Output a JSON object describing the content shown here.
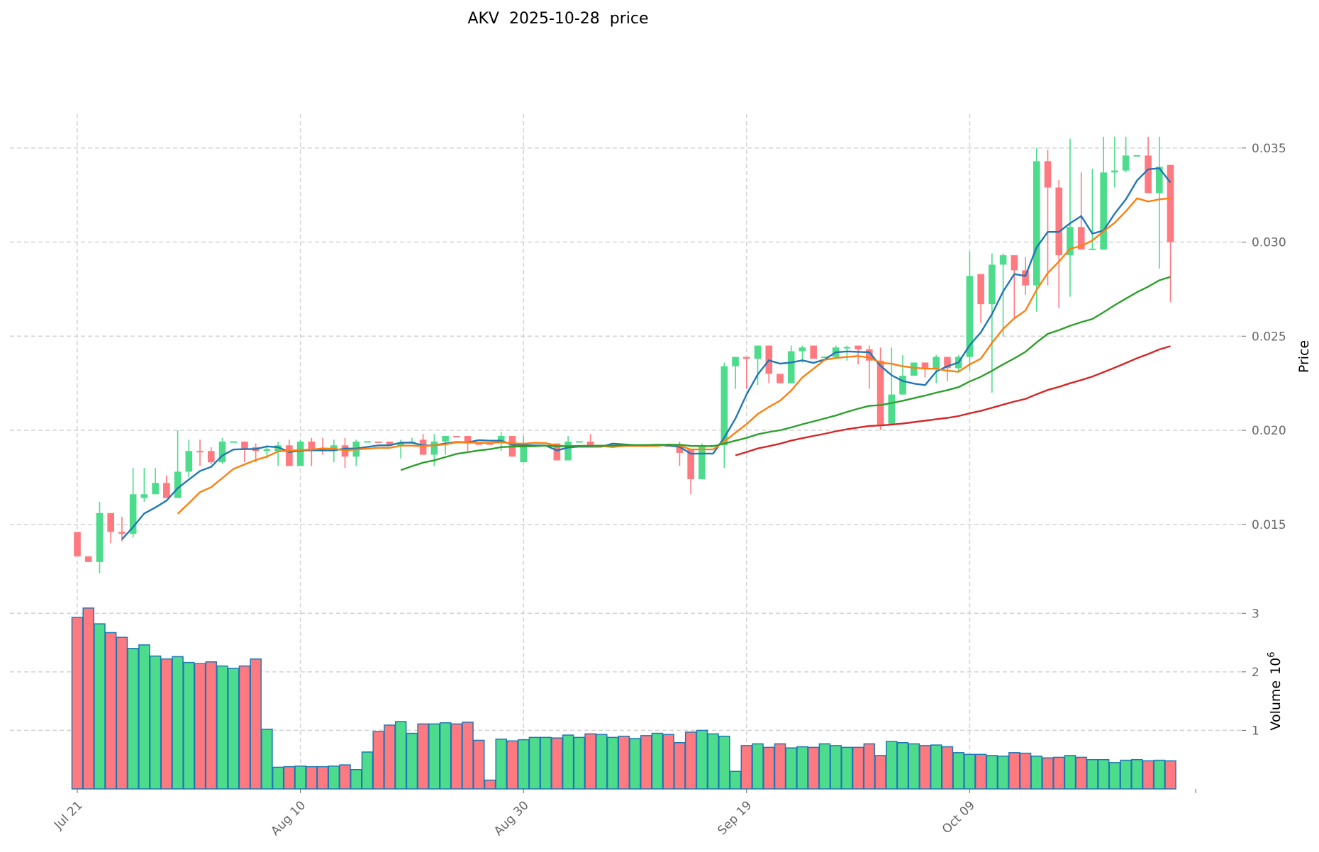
{
  "chart_data": {
    "type": "candlestick",
    "title": "AKV  2025-10-28  price",
    "ylabel": "Price",
    "volume_label": "Volume",
    "volume_exponent_base": "10",
    "volume_exponent": "6",
    "ylim": [
      0.0113,
      0.0368
    ],
    "volume_ylim": [
      0,
      3.33
    ],
    "price_ticks": [
      "0.015",
      "0.020",
      "0.025",
      "0.030",
      "0.035"
    ],
    "volume_ticks": [
      "1",
      "2",
      "3"
    ],
    "x_ticks": [
      {
        "index": 0,
        "label": "Jul 21"
      },
      {
        "index": 20,
        "label": "Aug 10"
      },
      {
        "index": 40,
        "label": "Aug 30"
      },
      {
        "index": 60,
        "label": "Sep 19"
      },
      {
        "index": 80,
        "label": "Oct 09"
      }
    ],
    "grid": true,
    "colors": {
      "up": "#4cdc8b",
      "down": "#ff7a80",
      "volume_edge": "#1f77b4"
    },
    "moving_averages": [
      {
        "window": 5,
        "color": "#1f77b4"
      },
      {
        "window": 10,
        "color": "#ff7f0e"
      },
      {
        "window": 30,
        "color": "#2ca02c"
      },
      {
        "window": 60,
        "color": "#d62728"
      }
    ],
    "ohlc_fields": [
      "open",
      "high",
      "low",
      "close"
    ],
    "ohlc": [
      [
        0.0146,
        0.0146,
        0.0133,
        0.0133
      ],
      [
        0.0133,
        0.0133,
        0.013,
        0.013
      ],
      [
        0.013,
        0.0162,
        0.0124,
        0.0156
      ],
      [
        0.0156,
        0.0156,
        0.014,
        0.0146
      ],
      [
        0.0146,
        0.0154,
        0.0141,
        0.0145
      ],
      [
        0.0145,
        0.018,
        0.0143,
        0.0166
      ],
      [
        0.0164,
        0.018,
        0.0162,
        0.0166
      ],
      [
        0.0166,
        0.018,
        0.0166,
        0.0172
      ],
      [
        0.0172,
        0.0176,
        0.0164,
        0.0164
      ],
      [
        0.0164,
        0.02,
        0.0164,
        0.0178
      ],
      [
        0.0178,
        0.0195,
        0.0175,
        0.0189
      ],
      [
        0.0189,
        0.0195,
        0.0181,
        0.01888
      ],
      [
        0.0189,
        0.0191,
        0.0182,
        0.0183
      ],
      [
        0.0183,
        0.0196,
        0.0182,
        0.0194
      ],
      [
        0.0194,
        0.0194,
        0.0194,
        0.01941
      ],
      [
        0.0194,
        0.0194,
        0.0183,
        0.019
      ],
      [
        0.0191,
        0.0193,
        0.0183,
        0.0189
      ],
      [
        0.0189,
        0.0192,
        0.0185,
        0.019
      ],
      [
        0.0189,
        0.0194,
        0.0181,
        0.0192
      ],
      [
        0.0192,
        0.0195,
        0.0181,
        0.0181
      ],
      [
        0.0181,
        0.0195,
        0.0181,
        0.0194
      ],
      [
        0.0194,
        0.0196,
        0.0181,
        0.019
      ],
      [
        0.019,
        0.0196,
        0.0187,
        0.01895
      ],
      [
        0.019,
        0.0195,
        0.0183,
        0.0192
      ],
      [
        0.0192,
        0.0196,
        0.018,
        0.0186
      ],
      [
        0.0186,
        0.0195,
        0.0181,
        0.0194
      ],
      [
        0.0194,
        0.0194,
        0.0194,
        0.01942
      ],
      [
        0.0194,
        0.0194,
        0.0194,
        0.01938
      ],
      [
        0.0194,
        0.0194,
        0.0192,
        0.0192
      ],
      [
        0.0192,
        0.0195,
        0.0185,
        0.0193
      ],
      [
        0.0193,
        0.0196,
        0.0193,
        0.0194
      ],
      [
        0.0195,
        0.0198,
        0.0187,
        0.0187
      ],
      [
        0.0187,
        0.0198,
        0.0181,
        0.0194
      ],
      [
        0.0194,
        0.0197,
        0.0187,
        0.0197
      ],
      [
        0.0197,
        0.0197,
        0.0197,
        0.01968
      ],
      [
        0.0197,
        0.0197,
        0.0189,
        0.0193
      ],
      [
        0.0193,
        0.0193,
        0.0193,
        0.01928
      ],
      [
        0.0193,
        0.0193,
        0.0193,
        0.01928
      ],
      [
        0.0193,
        0.0199,
        0.0189,
        0.0197
      ],
      [
        0.0197,
        0.0197,
        0.0186,
        0.0186
      ],
      [
        0.0183,
        0.0197,
        0.0183,
        0.0192
      ],
      [
        0.0192,
        0.0192,
        0.0192,
        0.01921
      ],
      [
        0.0192,
        0.0192,
        0.0192,
        0.01922
      ],
      [
        0.0193,
        0.0193,
        0.0184,
        0.0184
      ],
      [
        0.0184,
        0.0197,
        0.0184,
        0.0194
      ],
      [
        0.0194,
        0.0194,
        0.0194,
        0.01942
      ],
      [
        0.0194,
        0.0198,
        0.0191,
        0.0192
      ],
      [
        0.0192,
        0.0192,
        0.0192,
        0.01922
      ],
      [
        0.0192,
        0.0192,
        0.0192,
        0.01922
      ],
      [
        0.0192,
        0.0192,
        0.0192,
        0.01918
      ],
      [
        0.0192,
        0.0192,
        0.0192,
        0.01922
      ],
      [
        0.0192,
        0.0192,
        0.0192,
        0.01918
      ],
      [
        0.0192,
        0.0192,
        0.0192,
        0.01922
      ],
      [
        0.0192,
        0.0192,
        0.0192,
        0.01918
      ],
      [
        0.0192,
        0.0194,
        0.0181,
        0.0188
      ],
      [
        0.019,
        0.019,
        0.0166,
        0.0174
      ],
      [
        0.0174,
        0.0193,
        0.0174,
        0.0192
      ],
      [
        0.0192,
        0.0192,
        0.0192,
        0.01922
      ],
      [
        0.0192,
        0.0236,
        0.018,
        0.0234
      ],
      [
        0.0234,
        0.0239,
        0.0222,
        0.0239
      ],
      [
        0.0239,
        0.0239,
        0.0222,
        0.0238
      ],
      [
        0.0238,
        0.0245,
        0.0224,
        0.0245
      ],
      [
        0.0245,
        0.0245,
        0.0225,
        0.023
      ],
      [
        0.023,
        0.023,
        0.0225,
        0.0225
      ],
      [
        0.0225,
        0.0245,
        0.0225,
        0.0242
      ],
      [
        0.0242,
        0.0245,
        0.0236,
        0.0244
      ],
      [
        0.0245,
        0.0245,
        0.0238,
        0.0238
      ],
      [
        0.0239,
        0.0239,
        0.0239,
        0.02392
      ],
      [
        0.0239,
        0.0245,
        0.0239,
        0.0244
      ],
      [
        0.0244,
        0.0245,
        0.0237,
        0.02442
      ],
      [
        0.0245,
        0.0245,
        0.0235,
        0.0243
      ],
      [
        0.0243,
        0.0245,
        0.0222,
        0.0237
      ],
      [
        0.0237,
        0.0244,
        0.02,
        0.0203
      ],
      [
        0.0203,
        0.0244,
        0.0203,
        0.0219
      ],
      [
        0.0219,
        0.024,
        0.0219,
        0.0229
      ],
      [
        0.0229,
        0.0236,
        0.0229,
        0.0236
      ],
      [
        0.0236,
        0.0236,
        0.0228,
        0.0233
      ],
      [
        0.0233,
        0.024,
        0.0225,
        0.0239
      ],
      [
        0.0239,
        0.0239,
        0.0226,
        0.0233
      ],
      [
        0.0233,
        0.024,
        0.0231,
        0.0239
      ],
      [
        0.0239,
        0.0295,
        0.0232,
        0.0282
      ],
      [
        0.0283,
        0.0283,
        0.0257,
        0.0267
      ],
      [
        0.0267,
        0.0294,
        0.022,
        0.0288
      ],
      [
        0.0288,
        0.0294,
        0.025,
        0.0293
      ],
      [
        0.0293,
        0.0293,
        0.026,
        0.0285
      ],
      [
        0.0285,
        0.0292,
        0.0272,
        0.0277
      ],
      [
        0.0277,
        0.035,
        0.0263,
        0.0343
      ],
      [
        0.0343,
        0.0349,
        0.0277,
        0.0329
      ],
      [
        0.0329,
        0.0333,
        0.0265,
        0.0293
      ],
      [
        0.0293,
        0.0355,
        0.0271,
        0.0308
      ],
      [
        0.0308,
        0.0337,
        0.0296,
        0.0296
      ],
      [
        0.0296,
        0.0339,
        0.0296,
        0.02965
      ],
      [
        0.0296,
        0.0356,
        0.0296,
        0.0337
      ],
      [
        0.0337,
        0.0356,
        0.0329,
        0.0338
      ],
      [
        0.0338,
        0.0356,
        0.0337,
        0.0346
      ],
      [
        0.0346,
        0.0346,
        0.0346,
        0.03462
      ],
      [
        0.0346,
        0.0356,
        0.0326,
        0.0326
      ],
      [
        0.0326,
        0.0356,
        0.0286,
        0.034
      ],
      [
        0.0341,
        0.0341,
        0.0268,
        0.03
      ]
    ],
    "volume_millions": [
      2.93,
      3.09,
      2.82,
      2.67,
      2.59,
      2.4,
      2.46,
      2.27,
      2.22,
      2.26,
      2.16,
      2.14,
      2.17,
      2.1,
      2.06,
      2.1,
      2.22,
      1.02,
      0.37,
      0.38,
      0.39,
      0.38,
      0.38,
      0.39,
      0.41,
      0.33,
      0.63,
      0.98,
      1.09,
      1.15,
      0.95,
      1.11,
      1.11,
      1.13,
      1.11,
      1.14,
      0.83,
      0.15,
      0.85,
      0.82,
      0.84,
      0.88,
      0.88,
      0.87,
      0.92,
      0.88,
      0.94,
      0.93,
      0.88,
      0.9,
      0.86,
      0.91,
      0.95,
      0.93,
      0.79,
      0.97,
      1.0,
      0.94,
      0.9,
      0.3,
      0.74,
      0.77,
      0.71,
      0.77,
      0.7,
      0.72,
      0.71,
      0.77,
      0.74,
      0.71,
      0.71,
      0.77,
      0.57,
      0.81,
      0.79,
      0.77,
      0.74,
      0.75,
      0.72,
      0.62,
      0.59,
      0.59,
      0.57,
      0.56,
      0.62,
      0.61,
      0.56,
      0.53,
      0.54,
      0.57,
      0.54,
      0.5,
      0.5,
      0.45,
      0.49,
      0.5,
      0.48,
      0.49,
      0.48
    ]
  }
}
